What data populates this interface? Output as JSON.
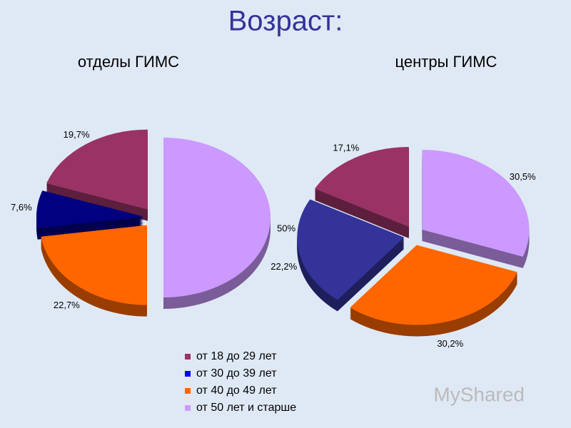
{
  "title": "Возраст:",
  "chart_data": [
    {
      "type": "pie",
      "title": "отделы ГИМС",
      "values": [
        19.7,
        7.6,
        22.7,
        50
      ],
      "value_labels": [
        "19,7%",
        "7,6%",
        "22,7%",
        "50%"
      ],
      "colors": [
        "#993366",
        "#000080",
        "#ff6600",
        "#cc99ff"
      ]
    },
    {
      "type": "pie",
      "title": "центры ГИМС",
      "values": [
        17.1,
        22.2,
        30.2,
        30.5
      ],
      "value_labels": [
        "17,1%",
        "22,2%",
        "30,2%",
        "30,5%"
      ],
      "colors": [
        "#993366",
        "#333399",
        "#ff6600",
        "#cc99ff"
      ]
    }
  ],
  "legend": {
    "labels": [
      "от 18 до 29 лет",
      "от 30 до 39 лет",
      "от 40 до 49 лет",
      "от 50 лет и старше"
    ],
    "colors": [
      "#993366",
      "#0000ff",
      "#ff6600",
      "#cc99ff"
    ]
  },
  "watermark": "MyShared"
}
